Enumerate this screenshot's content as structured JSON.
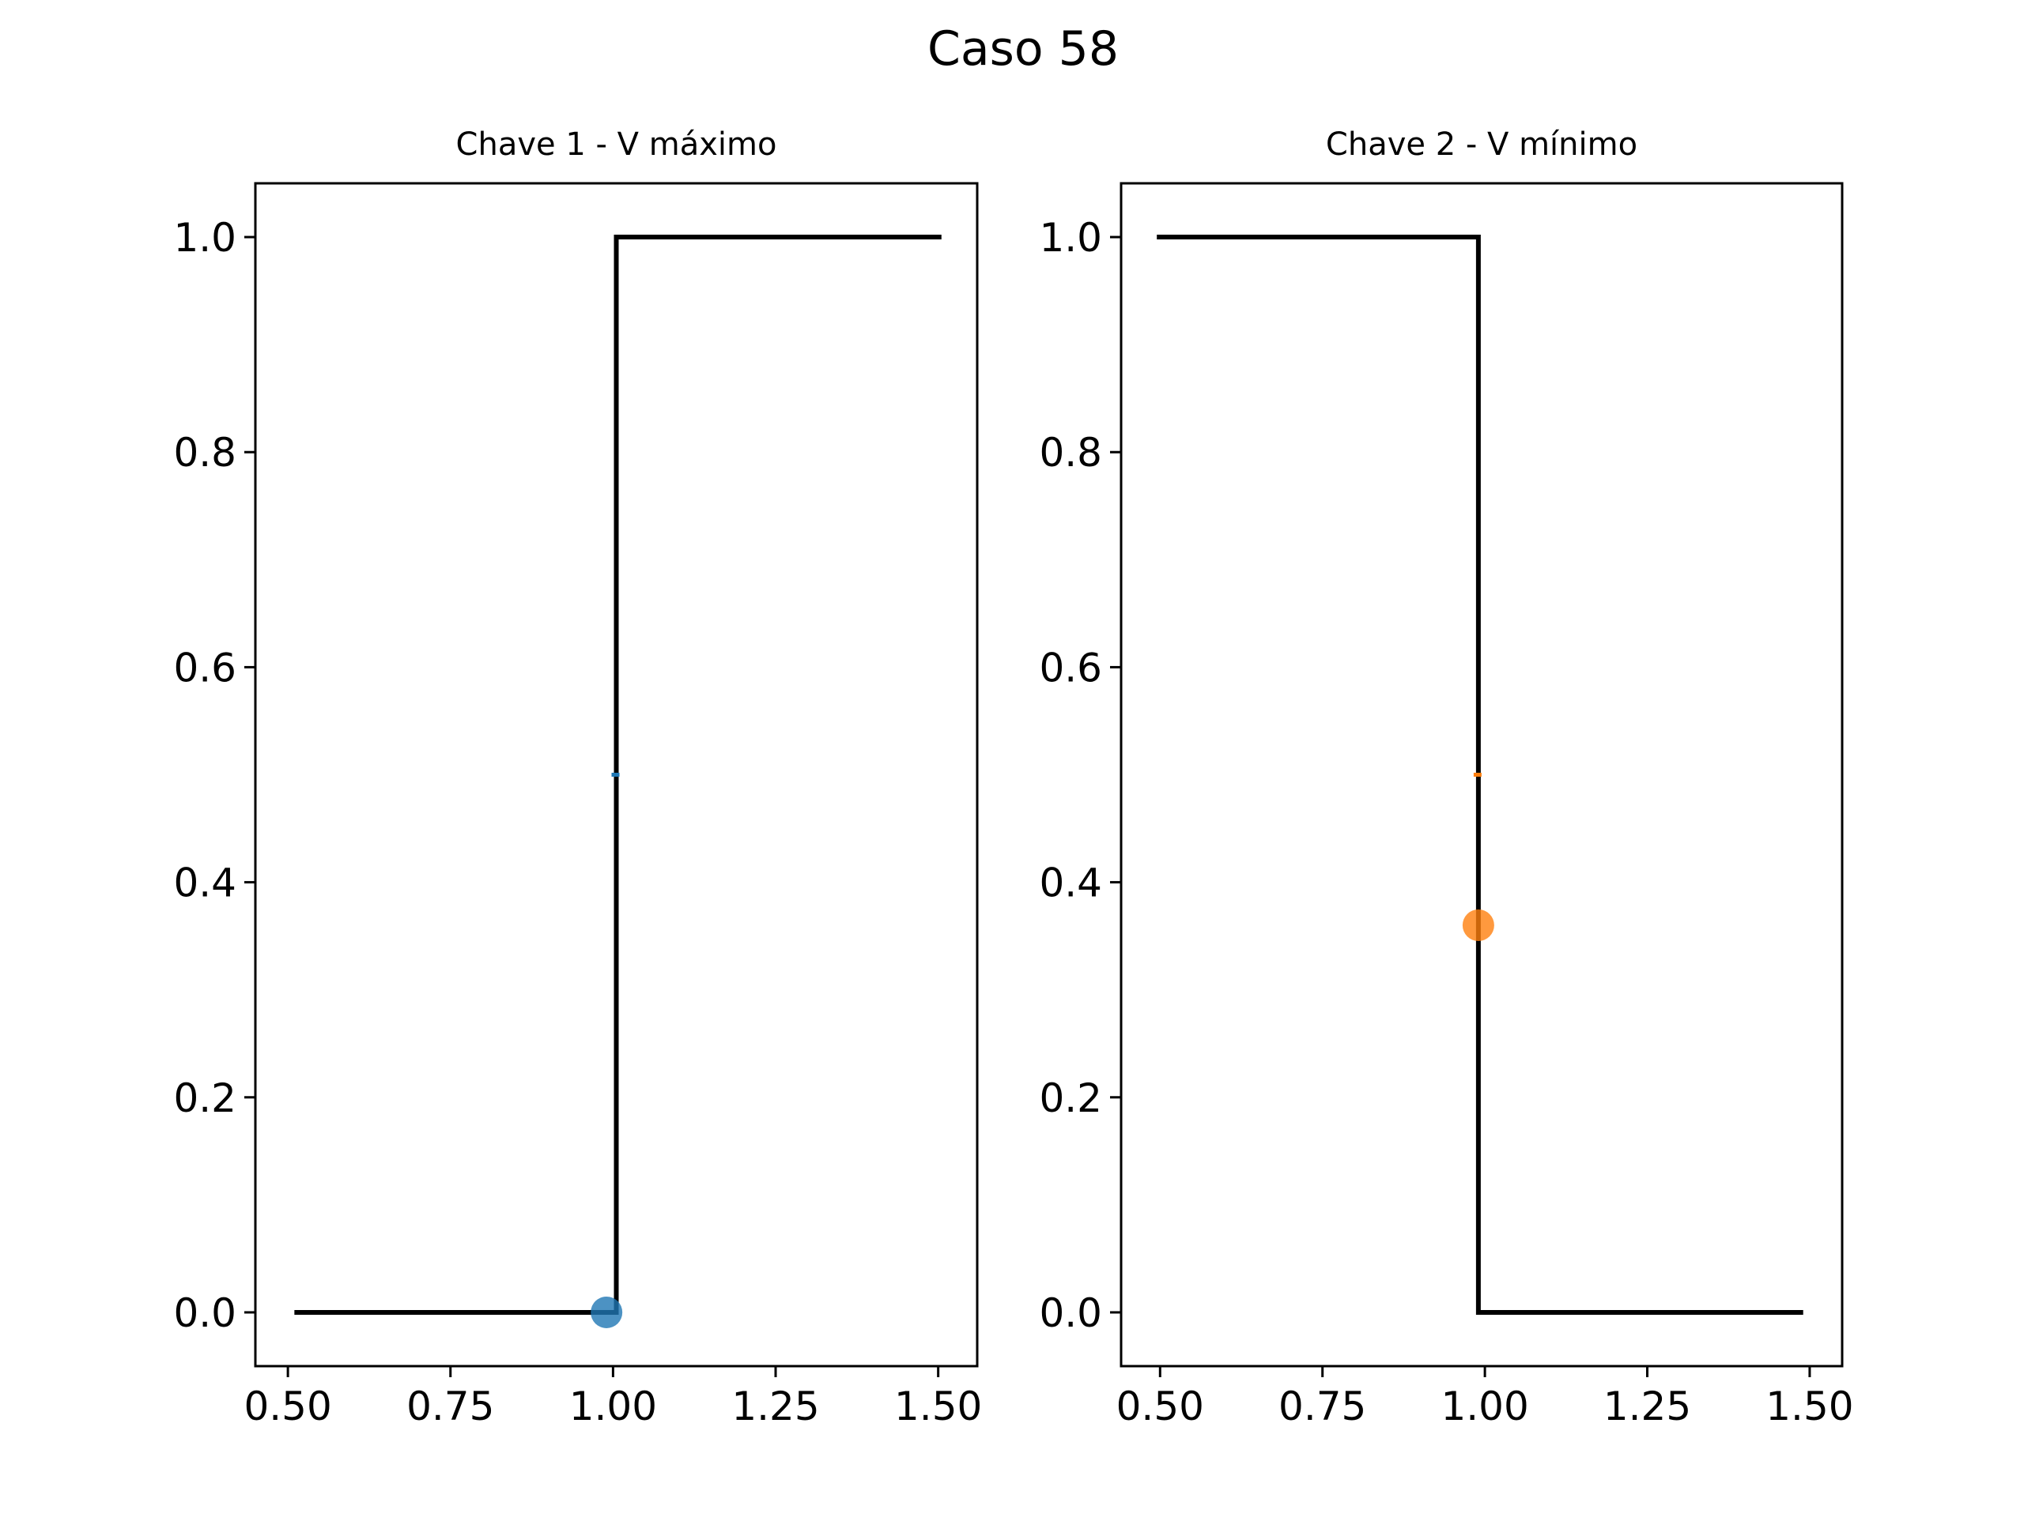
{
  "figure": {
    "title": "Caso 58"
  },
  "chart_data": [
    {
      "type": "line",
      "title": "Chave 1 - V máximo",
      "xlabel": "",
      "ylabel": "",
      "xlim": [
        0.45,
        1.56
      ],
      "ylim": [
        -0.05,
        1.05
      ],
      "xticks": [
        0.5,
        0.75,
        1.0,
        1.25,
        1.5
      ],
      "xtick_labels": [
        "0.50",
        "0.75",
        "1.00",
        "1.25",
        "1.50"
      ],
      "yticks": [
        0.0,
        0.2,
        0.4,
        0.6,
        0.8,
        1.0
      ],
      "ytick_labels": [
        "0.0",
        "0.2",
        "0.4",
        "0.6",
        "0.8",
        "1.0"
      ],
      "grid": false,
      "series": [
        {
          "kind": "step",
          "color": "#000000",
          "x": [
            0.51,
            1.005,
            1.005,
            1.505
          ],
          "y": [
            0.0,
            0.0,
            1.0,
            1.0
          ]
        },
        {
          "kind": "tick",
          "color": "#1f77b4",
          "x": [
            1.005
          ],
          "y": [
            0.5
          ]
        },
        {
          "kind": "point",
          "color": "#1f77b4",
          "x": [
            0.99
          ],
          "y": [
            0.0
          ]
        }
      ]
    },
    {
      "type": "line",
      "title": "Chave 2 - V mínimo",
      "xlabel": "",
      "ylabel": "",
      "xlim": [
        0.44,
        1.55
      ],
      "ylim": [
        -0.05,
        1.05
      ],
      "xticks": [
        0.5,
        0.75,
        1.0,
        1.25,
        1.5
      ],
      "xtick_labels": [
        "0.50",
        "0.75",
        "1.00",
        "1.25",
        "1.50"
      ],
      "yticks": [
        0.0,
        0.2,
        0.4,
        0.6,
        0.8,
        1.0
      ],
      "ytick_labels": [
        "0.0",
        "0.2",
        "0.4",
        "0.6",
        "0.8",
        "1.0"
      ],
      "grid": false,
      "series": [
        {
          "kind": "step",
          "color": "#000000",
          "x": [
            0.495,
            0.99,
            0.99,
            1.49
          ],
          "y": [
            1.0,
            1.0,
            0.0,
            0.0
          ]
        },
        {
          "kind": "tick",
          "color": "#ff7f0e",
          "x": [
            0.99
          ],
          "y": [
            0.5
          ]
        },
        {
          "kind": "point",
          "color": "#ff7f0e",
          "x": [
            0.99
          ],
          "y": [
            0.36
          ]
        }
      ]
    }
  ]
}
